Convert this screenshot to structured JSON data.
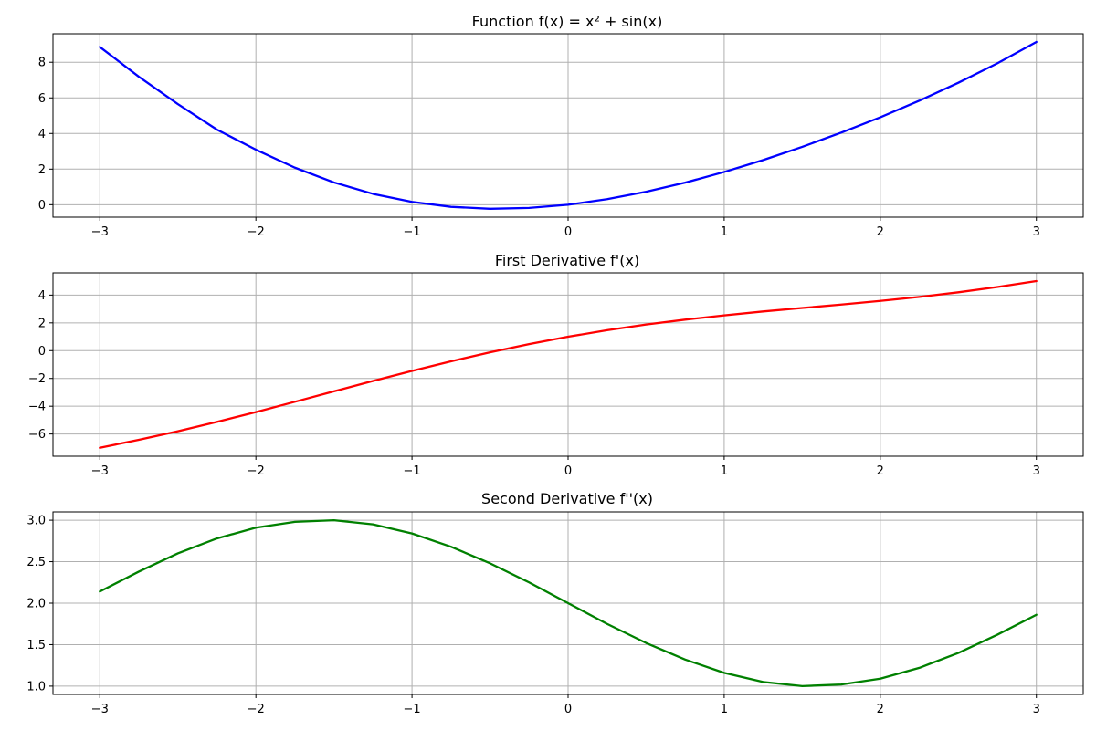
{
  "chart_data": [
    {
      "type": "line",
      "title": "Function f(x) = x² + sin(x)",
      "xlim": [
        -3.3,
        3.3
      ],
      "ylim": [
        -0.7,
        9.6
      ],
      "xticks": [
        -3,
        -2,
        -1,
        0,
        1,
        2,
        3
      ],
      "xtick_labels": [
        "−3",
        "−2",
        "−1",
        "0",
        "1",
        "2",
        "3"
      ],
      "yticks": [
        0,
        2,
        4,
        6,
        8
      ],
      "ytick_labels": [
        "0",
        "2",
        "4",
        "6",
        "8"
      ],
      "grid": true,
      "series": [
        {
          "color": "#0000ff",
          "x": [
            -3,
            -2.75,
            -2.5,
            -2.25,
            -2,
            -1.75,
            -1.5,
            -1.25,
            -1,
            -0.75,
            -0.5,
            -0.25,
            0,
            0.25,
            0.5,
            0.75,
            1,
            1.25,
            1.5,
            1.75,
            2,
            2.25,
            2.5,
            2.75,
            3
          ],
          "y": [
            8.86,
            7.19,
            5.65,
            4.22,
            3.09,
            2.08,
            1.25,
            0.61,
            0.16,
            -0.12,
            -0.23,
            -0.18,
            0,
            0.31,
            0.73,
            1.24,
            1.84,
            2.51,
            3.25,
            4.05,
            4.91,
            5.84,
            6.85,
            7.94,
            9.14
          ]
        }
      ]
    },
    {
      "type": "line",
      "title": "First Derivative f'(x)",
      "xlim": [
        -3.3,
        3.3
      ],
      "ylim": [
        -7.6,
        5.6
      ],
      "xticks": [
        -3,
        -2,
        -1,
        0,
        1,
        2,
        3
      ],
      "xtick_labels": [
        "−3",
        "−2",
        "−1",
        "0",
        "1",
        "2",
        "3"
      ],
      "yticks": [
        -6,
        -4,
        -2,
        0,
        2,
        4
      ],
      "ytick_labels": [
        "−6",
        "−4",
        "−2",
        "0",
        "2",
        "4"
      ],
      "grid": true,
      "series": [
        {
          "color": "#ff0000",
          "x": [
            -3,
            -2.75,
            -2.5,
            -2.25,
            -2,
            -1.75,
            -1.5,
            -1.25,
            -1,
            -0.75,
            -0.5,
            -0.25,
            0,
            0.25,
            0.5,
            0.75,
            1,
            1.25,
            1.5,
            1.75,
            2,
            2.25,
            2.5,
            2.75,
            3
          ],
          "y": [
            -6.99,
            -6.42,
            -5.8,
            -5.13,
            -4.42,
            -3.68,
            -2.93,
            -2.18,
            -1.46,
            -0.77,
            -0.12,
            0.47,
            1,
            1.47,
            1.88,
            2.23,
            2.54,
            2.82,
            3.07,
            3.32,
            3.58,
            3.87,
            4.2,
            4.58,
            5.01
          ]
        }
      ]
    },
    {
      "type": "line",
      "title": "Second Derivative f''(x)",
      "xlim": [
        -3.3,
        3.3
      ],
      "ylim": [
        0.9,
        3.1
      ],
      "xticks": [
        -3,
        -2,
        -1,
        0,
        1,
        2,
        3
      ],
      "xtick_labels": [
        "−3",
        "−2",
        "−1",
        "0",
        "1",
        "2",
        "3"
      ],
      "yticks": [
        1.0,
        1.5,
        2.0,
        2.5,
        3.0
      ],
      "ytick_labels": [
        "1.0",
        "1.5",
        "2.0",
        "2.5",
        "3.0"
      ],
      "grid": true,
      "series": [
        {
          "color": "#008000",
          "x": [
            -3,
            -2.75,
            -2.5,
            -2.25,
            -2,
            -1.75,
            -1.5,
            -1.25,
            -1,
            -0.75,
            -0.5,
            -0.25,
            0,
            0.25,
            0.5,
            0.75,
            1,
            1.25,
            1.5,
            1.75,
            2,
            2.25,
            2.5,
            2.75,
            3
          ],
          "y": [
            2.14,
            2.38,
            2.6,
            2.78,
            2.91,
            2.98,
            3.0,
            2.95,
            2.84,
            2.68,
            2.48,
            2.25,
            2.0,
            1.75,
            1.52,
            1.32,
            1.16,
            1.05,
            1.0,
            1.02,
            1.09,
            1.22,
            1.4,
            1.62,
            1.86
          ]
        }
      ]
    }
  ]
}
